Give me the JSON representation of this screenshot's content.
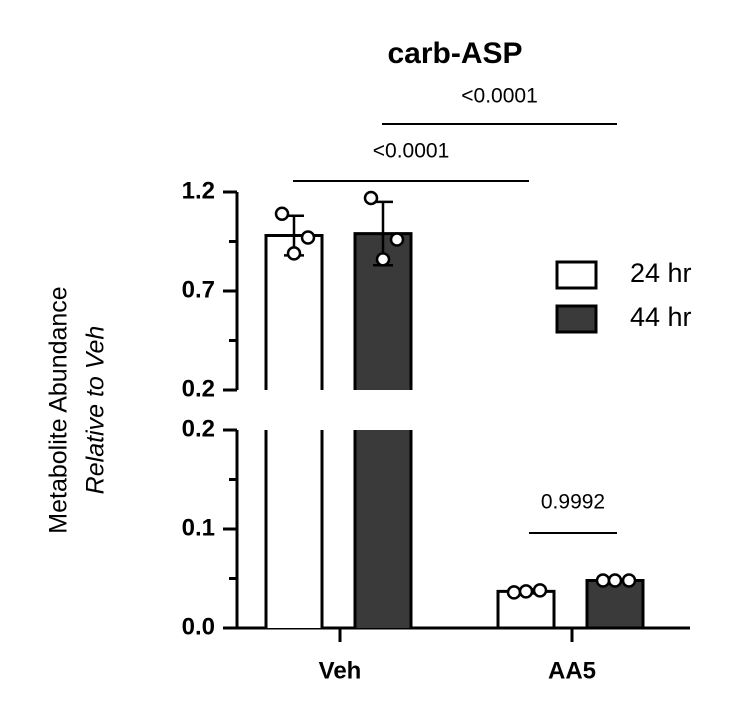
{
  "chart_data": {
    "type": "bar",
    "title": "carb-ASP",
    "y_label": "Metabolite Abundance",
    "y_label_2": "Relative to Veh",
    "categories": [
      "Veh",
      "AA5"
    ],
    "series": [
      {
        "name": "24 hr",
        "color": "#ffffff",
        "values": [
          0.98,
          0.037
        ],
        "errors": [
          0.1,
          0.002
        ],
        "points": [
          [
            1.09,
            0.97,
            0.89
          ],
          [
            0.036,
            0.038,
            0.037
          ]
        ]
      },
      {
        "name": "44 hr",
        "color": "#3a3a3a",
        "values": [
          0.99,
          0.048
        ],
        "errors": [
          0.16,
          0.001
        ],
        "points": [
          [
            1.17,
            0.96,
            0.86
          ],
          [
            0.048,
            0.048,
            0.048
          ]
        ]
      }
    ],
    "y_segments": [
      {
        "ylim": [
          0.2,
          1.2
        ],
        "yticks": [
          0.2,
          0.7,
          1.2
        ],
        "minor_ticks": [
          0.45,
          0.95
        ]
      },
      {
        "ylim": [
          0,
          0.2
        ],
        "yticks": [
          {
            "value": 0,
            "label": "0.0"
          },
          0.1,
          0.2
        ],
        "minor_ticks": [
          0.05,
          0.15
        ]
      }
    ],
    "annotations": [
      "<0.0001",
      "<0.0001",
      "0.9992"
    ],
    "legend": "right"
  }
}
